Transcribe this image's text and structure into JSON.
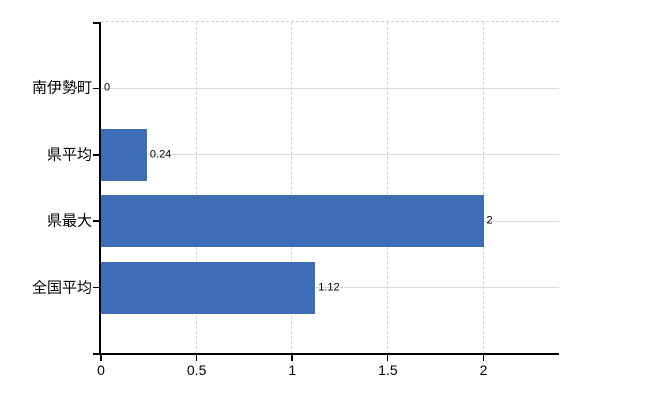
{
  "chart_data": {
    "type": "bar",
    "orientation": "horizontal",
    "title": "",
    "categories": [
      "南伊勢町",
      "県平均",
      "県最大",
      "全国平均"
    ],
    "values": [
      0,
      0.24,
      2,
      1.12
    ],
    "value_labels": [
      "0",
      "0.24",
      "2",
      "1.12"
    ],
    "xlim": [
      0,
      2.4
    ],
    "xticks": [
      0,
      0.5,
      1,
      1.5,
      2
    ],
    "xtick_labels": [
      "0",
      "0.5",
      "1",
      "1.5",
      "2"
    ],
    "grid": true,
    "legend": false,
    "gridline_style": {
      "horizontal": "solid",
      "vertical": "dashed",
      "top_border": "dashed"
    },
    "colors": {
      "bar": "#3d6db4",
      "axis": "#000000",
      "grid_horizontal": "#d9ded4",
      "grid_vertical": "#d2d0d0",
      "top_border": "#cfcdd4",
      "background": "#ffffff",
      "text": "#000000"
    }
  }
}
